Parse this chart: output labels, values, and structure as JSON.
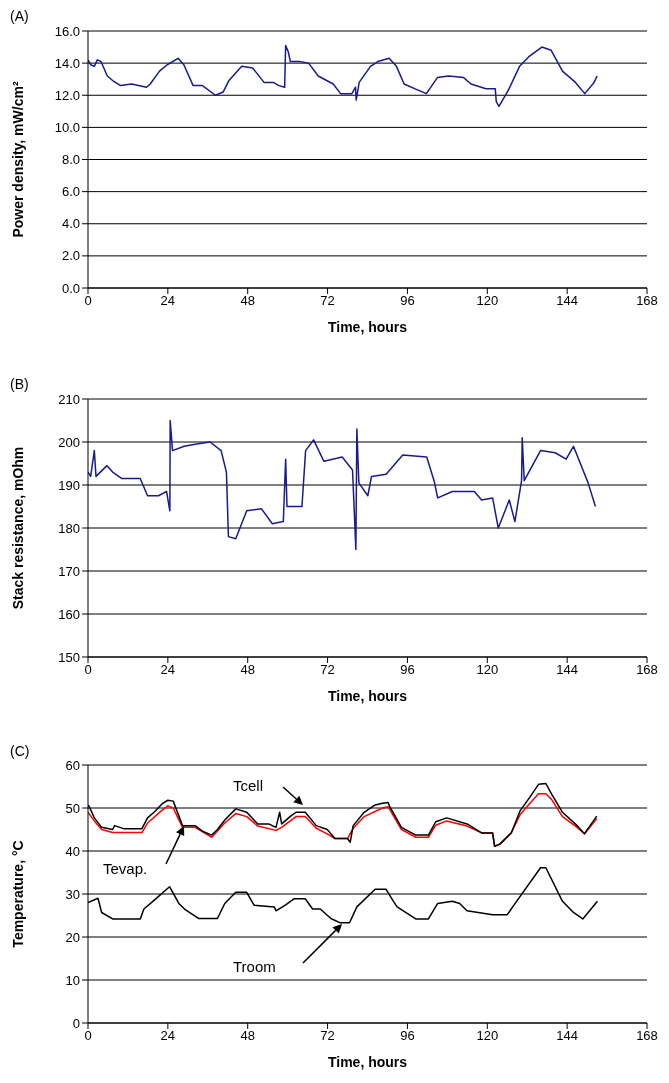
{
  "chart_data": [
    {
      "type": "line",
      "title": "(A)",
      "xlabel": "Time, hours",
      "ylabel": "Power density, mW/cm²",
      "xlim": [
        0,
        168
      ],
      "xticks": [
        0,
        24,
        48,
        72,
        96,
        120,
        144,
        168
      ],
      "ylim": [
        0,
        16
      ],
      "yticks": [
        {
          "value": 0,
          "label": "0.0"
        },
        {
          "value": 2,
          "label": "2.0"
        },
        {
          "value": 4,
          "label": "4.0"
        },
        {
          "value": 6,
          "label": "6.0"
        },
        {
          "value": 8,
          "label": "8.0"
        },
        {
          "value": 10,
          "label": "10.0"
        },
        {
          "value": 12,
          "label": "12.0"
        },
        {
          "value": 14,
          "label": "14.0"
        },
        {
          "value": 16,
          "label": "16.0"
        }
      ],
      "grid": "y",
      "marker": "none",
      "series": [
        {
          "color": "#1a1a8c",
          "x": [
            0,
            0.8,
            1.9,
            2.8,
            3.9,
            5.8,
            7.5,
            9.8,
            13.1,
            17.6,
            18.7,
            21.5,
            23.8,
            27.1,
            28.8,
            31.6,
            34.4,
            38.3,
            40.6,
            42.3,
            46.2,
            49.5,
            52.9,
            55.7,
            57.4,
            59.1,
            59.4,
            60.2,
            60.8,
            63.5,
            66.3,
            69.2,
            73.7,
            75.9,
            79.3,
            80.4,
            80.6,
            81.5,
            84.9,
            87.1,
            90.5,
            92.7,
            95,
            98.3,
            101.7,
            105,
            108.4,
            112.9,
            115.1,
            119.6,
            122.4,
            122.7,
            123.5,
            126.3,
            129.7,
            132.5,
            136.4,
            139.2,
            142.6,
            146.5,
            149.3,
            152.1,
            153
          ],
          "values": [
            14.2,
            13.9,
            13.8,
            14.2,
            14.1,
            13.2,
            12.9,
            12.6,
            12.7,
            12.5,
            12.7,
            13.5,
            13.9,
            14.3,
            13.9,
            12.6,
            12.6,
            12.0,
            12.2,
            12.9,
            13.8,
            13.7,
            12.8,
            12.8,
            12.6,
            12.5,
            15.1,
            14.7,
            14.1,
            14.1,
            14.0,
            13.2,
            12.7,
            12.1,
            12.1,
            12.5,
            11.7,
            12.8,
            13.8,
            14.1,
            14.3,
            13.8,
            12.7,
            12.4,
            12.1,
            13.1,
            13.2,
            13.1,
            12.7,
            12.4,
            12.4,
            11.6,
            11.3,
            12.3,
            13.8,
            14.4,
            15.0,
            14.8,
            13.5,
            12.8,
            12.1,
            12.8,
            13.2
          ]
        }
      ]
    },
    {
      "type": "line",
      "title": "(B)",
      "xlabel": "Time, hours",
      "ylabel": "Stack resistance, mOhm",
      "xlim": [
        0,
        168
      ],
      "xticks": [
        0,
        24,
        48,
        72,
        96,
        120,
        144,
        168
      ],
      "ylim": [
        150,
        210
      ],
      "yticks": [
        150,
        160,
        170,
        180,
        190,
        200,
        210
      ],
      "grid": "y",
      "marker": "none",
      "series": [
        {
          "color": "#1a1a8c",
          "x": [
            0,
            0.8,
            1.9,
            2.4,
            5.7,
            7.4,
            10.2,
            15.7,
            17.9,
            21.2,
            23.6,
            24.6,
            24.7,
            25.4,
            28.9,
            32.2,
            36.7,
            40,
            41.6,
            42.2,
            44.4,
            47.7,
            52.1,
            55.4,
            58.7,
            59.4,
            59.8,
            64.3,
            65.4,
            67.8,
            70.9,
            76.4,
            79.5,
            80.5,
            80.8,
            81.4,
            84.1,
            85.2,
            89.6,
            94.6,
            101.8,
            104,
            105.1,
            109.5,
            116.1,
            118.3,
            121.6,
            123.3,
            126.6,
            128.3,
            130.3,
            130.5,
            131.1,
            136,
            140.4,
            143.7,
            145.9,
            150.3,
            152.5
          ],
          "values": [
            193,
            192,
            198,
            192,
            194.5,
            193,
            191.5,
            191.5,
            187.5,
            187.5,
            188.5,
            184,
            205,
            198,
            199,
            199.5,
            200,
            198,
            193,
            178,
            177.5,
            184,
            184.5,
            181,
            181.5,
            196,
            185,
            185,
            198,
            200.5,
            195.5,
            196.5,
            193.5,
            175,
            203,
            190.5,
            187.5,
            192,
            192.5,
            197,
            196.5,
            191,
            187,
            188.5,
            188.5,
            186.5,
            187,
            180,
            186.5,
            181.5,
            191,
            201,
            191,
            198,
            197.5,
            196,
            199,
            190.5,
            185
          ]
        }
      ]
    },
    {
      "type": "line",
      "title": "(C)",
      "xlabel": "Time, hours",
      "ylabel": "Temperature, °C",
      "xlim": [
        0,
        168
      ],
      "xticks": [
        0,
        24,
        48,
        72,
        96,
        120,
        144,
        168
      ],
      "ylim": [
        0,
        60
      ],
      "yticks": [
        0,
        10,
        20,
        30,
        40,
        50,
        60
      ],
      "grid": "y",
      "marker": "none",
      "series": [
        {
          "name": "Tevap.",
          "color": "#ff0000",
          "x": [
            0,
            1.9,
            4.1,
            7.4,
            16.2,
            17.9,
            22.3,
            24,
            25.6,
            28.4,
            32.2,
            37.2,
            41.1,
            44.4,
            47.7,
            51,
            56.5,
            58.2,
            62.5,
            65.3,
            68.6,
            71.9,
            74.2,
            78,
            79.7,
            83,
            88.5,
            90.2,
            94.2,
            98.5,
            102.3,
            104.5,
            107.8,
            113.9,
            118.3,
            121.6,
            122.2,
            123.8,
            127.2,
            129.9,
            132.7,
            135.4,
            137.6,
            139.3,
            142.6,
            147,
            149.2,
            152.9
          ],
          "values": [
            49,
            47,
            45,
            44.3,
            44.3,
            46.5,
            49.5,
            50.5,
            50,
            45.5,
            45.5,
            43.2,
            46.5,
            48.7,
            48,
            45.8,
            44.8,
            45.5,
            48,
            48,
            45.3,
            44,
            42.9,
            42.9,
            45.3,
            48,
            50,
            50.3,
            45,
            43.2,
            43.2,
            46,
            47,
            45.8,
            44.2,
            44.2,
            41.1,
            41.6,
            44.2,
            48.5,
            51,
            53.3,
            53.3,
            52,
            48,
            45.5,
            44,
            47.5
          ]
        },
        {
          "name": "Tcell",
          "color": "#000000",
          "x": [
            0,
            0.4,
            1.9,
            4.1,
            7.4,
            8,
            10.7,
            16.2,
            17.9,
            20.1,
            22.3,
            24,
            25.6,
            28.4,
            32.2,
            34.4,
            37.2,
            38.9,
            41.1,
            44.4,
            47.7,
            51,
            54.3,
            56.5,
            57.6,
            58.2,
            60.9,
            62.5,
            65.3,
            68.6,
            71.9,
            74.2,
            78,
            78.8,
            79.7,
            83,
            86.3,
            88.5,
            90.2,
            90.7,
            94.2,
            98.5,
            102.3,
            104.5,
            107.8,
            113.9,
            118.3,
            121.6,
            122.2,
            123.8,
            127.2,
            129.9,
            132.7,
            135.4,
            137.6,
            139.3,
            142.6,
            147,
            149.2,
            150.9,
            152.9
          ],
          "values": [
            50.7,
            50.3,
            47.7,
            45.5,
            45,
            45.9,
            45.2,
            45.2,
            47.7,
            49.2,
            51,
            51.8,
            51.6,
            45.9,
            45.9,
            44.6,
            43.7,
            45,
            47.2,
            49.8,
            49,
            46.3,
            46.3,
            45.5,
            49,
            46.3,
            48.1,
            49,
            49,
            45.9,
            45,
            42.9,
            42.9,
            42,
            45.9,
            49,
            50.7,
            51.1,
            51.3,
            50.3,
            45.5,
            43.7,
            43.7,
            46.8,
            47.7,
            46.3,
            44.2,
            44.2,
            41.1,
            41.6,
            44.2,
            49.4,
            52.4,
            55.5,
            55.7,
            53.3,
            49,
            45.9,
            44,
            45.9,
            48.1
          ]
        },
        {
          "name": "Troom",
          "color": "#000000",
          "x": [
            0,
            3,
            4.1,
            7.4,
            15.7,
            16.8,
            19.5,
            24.5,
            27.3,
            29,
            33.3,
            38.9,
            41.1,
            44.4,
            47.7,
            49.9,
            56,
            56.5,
            59.3,
            62,
            65.3,
            67.5,
            69.8,
            73,
            75.8,
            78.6,
            80.8,
            86.3,
            89.6,
            91.8,
            92.9,
            98.5,
            102.3,
            105.1,
            109.5,
            111.7,
            113.9,
            121.6,
            126,
            128.8,
            136,
            137.6,
            142.6,
            145.9,
            148.7,
            153.1
          ],
          "values": [
            28,
            29,
            25.7,
            24.2,
            24.2,
            26.5,
            28.3,
            31.7,
            27.8,
            26.5,
            24.3,
            24.3,
            27.8,
            30.4,
            30.4,
            27.4,
            27,
            26.1,
            27.4,
            28.9,
            28.9,
            26.5,
            26.5,
            24.3,
            23.3,
            23.3,
            27,
            31.1,
            31.1,
            28.3,
            27,
            24.2,
            24.2,
            27.8,
            28.3,
            27.8,
            26.1,
            25.2,
            25.2,
            28.3,
            36.1,
            36.1,
            28.3,
            25.7,
            24.2,
            28.3
          ]
        }
      ]
    }
  ]
}
